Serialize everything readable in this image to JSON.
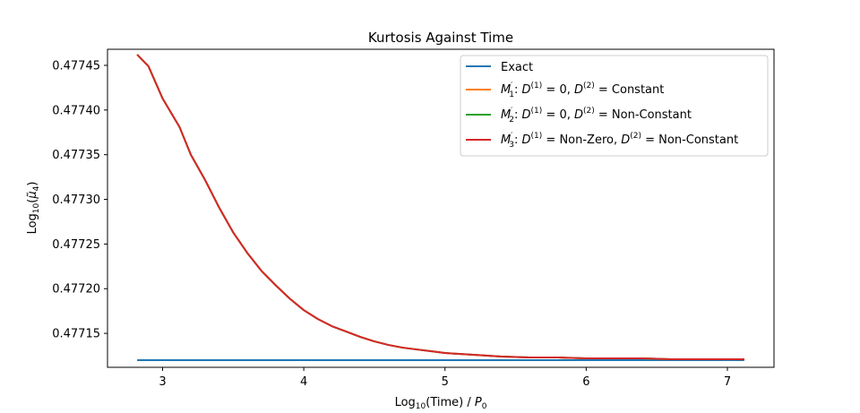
{
  "chart_data": {
    "type": "line",
    "title": "Kurtosis Against Time",
    "xlabel": "Log₁₀(Time) / P₀",
    "ylabel": "Log₁₀(μ̃₄)",
    "xlim": [
      2.61,
      7.33
    ],
    "ylim": [
      0.477112,
      0.477468
    ],
    "xticks": [
      3,
      4,
      5,
      6,
      7
    ],
    "yticks": [
      0.47715,
      0.4772,
      0.47725,
      0.4773,
      0.47735,
      0.4774,
      0.47745
    ],
    "xtick_labels": [
      "3",
      "4",
      "5",
      "6",
      "7"
    ],
    "ytick_labels": [
      "0.47715",
      "0.47720",
      "0.47725",
      "0.47730",
      "0.47735",
      "0.47740",
      "0.47745"
    ],
    "grid": false,
    "legend_position": "top-right",
    "series": [
      {
        "name": "Exact",
        "color": "#1f77b4",
        "x": [
          2.82,
          3.5,
          4.0,
          4.5,
          5.0,
          5.5,
          6.0,
          6.5,
          7.12
        ],
        "y": [
          0.47712,
          0.47712,
          0.47712,
          0.47712,
          0.47712,
          0.47712,
          0.47712,
          0.47712,
          0.47712
        ]
      },
      {
        "name": "M₁': D⁽¹⁾ = 0, D⁽²⁾ = Constant",
        "color": "#ff7f0e",
        "x": [
          2.82,
          2.9,
          3.0,
          3.12,
          3.2,
          3.3,
          3.4,
          3.5,
          3.6,
          3.7,
          3.8,
          3.9,
          4.0,
          4.1,
          4.2,
          4.3,
          4.4,
          4.5,
          4.6,
          4.7,
          4.8,
          4.9,
          5.0,
          5.2,
          5.4,
          5.6,
          5.8,
          6.0,
          6.2,
          6.4,
          6.6,
          6.8,
          7.0,
          7.12
        ],
        "y": [
          0.477462,
          0.477449,
          0.477413,
          0.477381,
          0.47735,
          0.477322,
          0.477291,
          0.477263,
          0.47724,
          0.47722,
          0.477204,
          0.477189,
          0.477176,
          0.477166,
          0.477158,
          0.477152,
          0.477146,
          0.477141,
          0.477137,
          0.477134,
          0.477132,
          0.47713,
          0.477128,
          0.477126,
          0.477124,
          0.477123,
          0.477123,
          0.477122,
          0.477122,
          0.477122,
          0.477121,
          0.477121,
          0.477121,
          0.477121
        ]
      },
      {
        "name": "M₂': D⁽¹⁾ = 0, D⁽²⁾ = Non-Constant",
        "color": "#2ca02c",
        "x": [
          2.82,
          2.9,
          3.0,
          3.12,
          3.2,
          3.3,
          3.4,
          3.5,
          3.6,
          3.7,
          3.8,
          3.9,
          4.0,
          4.1,
          4.2,
          4.3,
          4.4,
          4.5,
          4.6,
          4.7,
          4.8,
          4.9,
          5.0,
          5.2,
          5.4,
          5.6,
          5.8,
          6.0,
          6.2,
          6.4,
          6.6,
          6.8,
          7.0,
          7.12
        ],
        "y": [
          0.477462,
          0.477449,
          0.477413,
          0.477381,
          0.47735,
          0.477322,
          0.477291,
          0.477263,
          0.47724,
          0.47722,
          0.477204,
          0.477189,
          0.477176,
          0.477166,
          0.477158,
          0.477152,
          0.477146,
          0.477141,
          0.477137,
          0.477134,
          0.477132,
          0.47713,
          0.477128,
          0.477126,
          0.477124,
          0.477123,
          0.477123,
          0.477122,
          0.477122,
          0.477122,
          0.477121,
          0.477121,
          0.477121,
          0.477121
        ]
      },
      {
        "name": "M₃': D⁽¹⁾ = Non-Zero, D⁽²⁾ = Non-Constant",
        "color": "#d62728",
        "x": [
          2.82,
          2.9,
          3.0,
          3.12,
          3.2,
          3.3,
          3.4,
          3.5,
          3.6,
          3.7,
          3.8,
          3.9,
          4.0,
          4.1,
          4.2,
          4.3,
          4.4,
          4.5,
          4.6,
          4.7,
          4.8,
          4.9,
          5.0,
          5.2,
          5.4,
          5.6,
          5.8,
          6.0,
          6.2,
          6.4,
          6.6,
          6.8,
          7.0,
          7.12
        ],
        "y": [
          0.477462,
          0.477449,
          0.477413,
          0.477381,
          0.47735,
          0.477322,
          0.477291,
          0.477263,
          0.47724,
          0.47722,
          0.477204,
          0.477189,
          0.477176,
          0.477166,
          0.477158,
          0.477152,
          0.477146,
          0.477141,
          0.477137,
          0.477134,
          0.477132,
          0.47713,
          0.477128,
          0.477126,
          0.477124,
          0.477123,
          0.477123,
          0.477122,
          0.477122,
          0.477122,
          0.477121,
          0.477121,
          0.477121,
          0.477121
        ]
      }
    ]
  }
}
